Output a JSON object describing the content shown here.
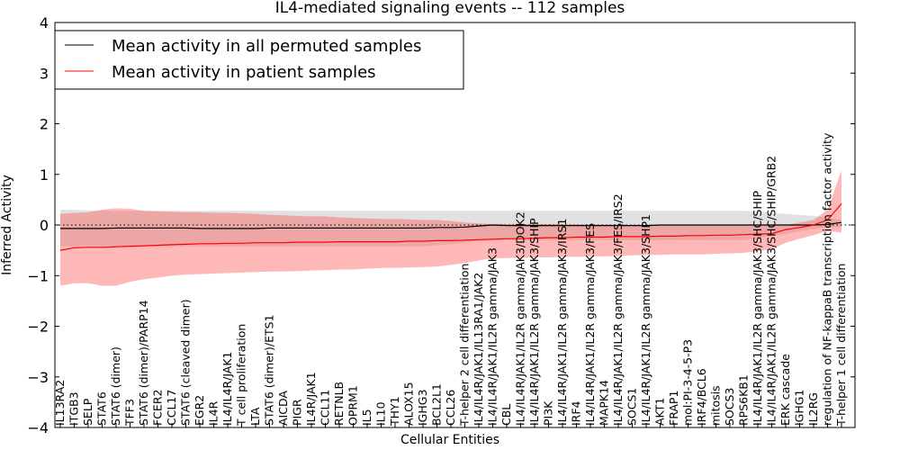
{
  "chart_data": {
    "type": "line",
    "title": "IL4-mediated signaling events -- 112 samples",
    "xlabel": "Cellular Entities",
    "ylabel": "Inferred Activity",
    "ylim": [
      -4,
      4
    ],
    "yticks": [
      -4,
      -3,
      -2,
      -1,
      0,
      1,
      2,
      3,
      4
    ],
    "reference_line": 0,
    "legend_position": "top-left",
    "categories": [
      "IL13RA2",
      "ITGB3",
      "SELP",
      "STAT6",
      "STAT6 (dimer)",
      "TFF3",
      "STAT6 (dimer)/PARP14",
      "FCER2",
      "CCL17",
      "STAT6 (cleaved dimer)",
      "EGR2",
      "IL4R",
      "IL4/IL4R/JAK1",
      "T cell proliferation",
      "LTA",
      "STAT6 (dimer)/ETS1",
      "AICDA",
      "PIGR",
      "IL4R/JAK1",
      "CCL11",
      "RETNLB",
      "OPRM1",
      "IL5",
      "IL10",
      "THY1",
      "ALOX15",
      "IGHG3",
      "BCL2L1",
      "CCL26",
      "T-helper 2 cell differentiation",
      "IL4/IL4R/JAK1/IL13RA1/JAK2",
      "IL4/IL4R/JAK1/IL2R gamma/JAK3",
      "CBL",
      "IL4/IL4R/JAK1/IL2R gamma/JAK3/DOK2",
      "IL4/IL4R/JAK1/IL2R gamma/JAK3/SHIP",
      "PI3K",
      "IL4/IL4R/JAK1/IL2R gamma/JAK3/IRS1",
      "IRF4",
      "IL4/IL4R/JAK1/IL2R gamma/JAK3/FES",
      "MAPK14",
      "IL4/IL4R/JAK1/IL2R gamma/JAK3/FES/IRS2",
      "SOCS1",
      "IL4/IL4R/JAK1/IL2R gamma/JAK3/SHP1",
      "AKT1",
      "FRAP1",
      "mol:PI-3-4-5-P3",
      "IRF4/BCL6",
      "mitosis",
      "SOCS3",
      "RPS6KB1",
      "IL4/IL4R/JAK1/IL2R gamma/JAK3/SHC/SHIP",
      "IL4/IL4R/JAK1/IL2R gamma/JAK3/SHC/SHIP/GRB2",
      "ERK cascade",
      "IGHG1",
      "IL2RG",
      "regulation of NF-kappaB transcription factor activity",
      "T-helper 1 cell differentiation"
    ],
    "series": [
      {
        "name": "Mean activity in all permuted samples",
        "color": "#000000",
        "values": [
          -0.07,
          -0.07,
          -0.07,
          -0.07,
          -0.06,
          -0.06,
          -0.06,
          -0.06,
          -0.06,
          -0.06,
          -0.07,
          -0.07,
          -0.07,
          -0.07,
          -0.07,
          -0.06,
          -0.06,
          -0.06,
          -0.06,
          -0.06,
          -0.06,
          -0.06,
          -0.06,
          -0.06,
          -0.06,
          -0.06,
          -0.06,
          -0.05,
          -0.05,
          -0.04,
          -0.02,
          0.0,
          -0.01,
          -0.01,
          -0.01,
          -0.01,
          -0.01,
          -0.01,
          -0.01,
          -0.01,
          -0.01,
          -0.01,
          -0.01,
          0.0,
          0.0,
          0.0,
          0.0,
          0.0,
          0.0,
          0.0,
          0.0,
          0.0,
          0.0,
          0.0,
          0.0,
          0.01,
          0.05
        ],
        "band_upper": [
          0.3,
          0.3,
          0.29,
          0.29,
          0.28,
          0.28,
          0.28,
          0.28,
          0.28,
          0.28,
          0.28,
          0.28,
          0.28,
          0.28,
          0.28,
          0.28,
          0.28,
          0.28,
          0.28,
          0.28,
          0.28,
          0.28,
          0.28,
          0.28,
          0.28,
          0.28,
          0.28,
          0.28,
          0.28,
          0.28,
          0.28,
          0.28,
          0.28,
          0.28,
          0.28,
          0.28,
          0.28,
          0.28,
          0.28,
          0.28,
          0.28,
          0.28,
          0.28,
          0.28,
          0.28,
          0.28,
          0.28,
          0.28,
          0.28,
          0.28,
          0.26,
          0.24,
          0.22,
          0.2,
          0.18,
          0.15,
          0.1
        ],
        "band_lower": [
          -0.42,
          -0.42,
          -0.42,
          -0.42,
          -0.42,
          -0.42,
          -0.42,
          -0.42,
          -0.42,
          -0.42,
          -0.42,
          -0.42,
          -0.42,
          -0.42,
          -0.42,
          -0.42,
          -0.42,
          -0.42,
          -0.42,
          -0.42,
          -0.42,
          -0.42,
          -0.42,
          -0.42,
          -0.42,
          -0.42,
          -0.42,
          -0.4,
          -0.38,
          -0.35,
          -0.32,
          -0.3,
          -0.3,
          -0.3,
          -0.3,
          -0.3,
          -0.3,
          -0.3,
          -0.3,
          -0.3,
          -0.3,
          -0.3,
          -0.3,
          -0.3,
          -0.3,
          -0.3,
          -0.3,
          -0.3,
          -0.3,
          -0.3,
          -0.26,
          -0.22,
          -0.18,
          -0.12,
          -0.08,
          -0.05,
          -0.05
        ]
      },
      {
        "name": "Mean activity in patient samples",
        "color": "#ff0000",
        "values": [
          -0.5,
          -0.45,
          -0.44,
          -0.44,
          -0.43,
          -0.42,
          -0.41,
          -0.4,
          -0.39,
          -0.38,
          -0.37,
          -0.37,
          -0.36,
          -0.36,
          -0.35,
          -0.35,
          -0.35,
          -0.34,
          -0.34,
          -0.34,
          -0.33,
          -0.33,
          -0.33,
          -0.33,
          -0.33,
          -0.32,
          -0.32,
          -0.31,
          -0.31,
          -0.3,
          -0.29,
          -0.28,
          -0.27,
          -0.27,
          -0.26,
          -0.25,
          -0.25,
          -0.24,
          -0.24,
          -0.24,
          -0.23,
          -0.23,
          -0.23,
          -0.22,
          -0.22,
          -0.21,
          -0.21,
          -0.2,
          -0.2,
          -0.19,
          -0.18,
          -0.17,
          -0.09,
          -0.05,
          0.0,
          0.1,
          0.42
        ],
        "band_upper": [
          0.22,
          0.24,
          0.25,
          0.3,
          0.33,
          0.32,
          0.28,
          0.27,
          0.26,
          0.25,
          0.25,
          0.24,
          0.24,
          0.23,
          0.22,
          0.2,
          0.19,
          0.18,
          0.17,
          0.17,
          0.15,
          0.14,
          0.13,
          0.12,
          0.12,
          0.11,
          0.1,
          0.1,
          0.08,
          0.05,
          0.03,
          0.02,
          0.02,
          0.02,
          0.02,
          0.02,
          0.02,
          0.01,
          0.01,
          0.01,
          0.01,
          0.0,
          0.0,
          0.0,
          0.0,
          0.0,
          0.0,
          0.0,
          0.0,
          0.0,
          0.0,
          0.0,
          0.0,
          0.05,
          0.1,
          0.3,
          1.08
        ],
        "band_lower": [
          -1.2,
          -1.15,
          -1.15,
          -1.2,
          -1.2,
          -1.12,
          -1.07,
          -1.04,
          -1.0,
          -0.98,
          -0.97,
          -0.96,
          -0.95,
          -0.94,
          -0.93,
          -0.92,
          -0.92,
          -0.91,
          -0.9,
          -0.89,
          -0.88,
          -0.88,
          -0.86,
          -0.85,
          -0.85,
          -0.84,
          -0.83,
          -0.82,
          -0.79,
          -0.75,
          -0.7,
          -0.66,
          -0.65,
          -0.65,
          -0.64,
          -0.64,
          -0.63,
          -0.63,
          -0.62,
          -0.62,
          -0.61,
          -0.6,
          -0.59,
          -0.59,
          -0.58,
          -0.58,
          -0.58,
          -0.57,
          -0.56,
          -0.55,
          -0.52,
          -0.48,
          -0.35,
          -0.27,
          -0.2,
          -0.12,
          -0.15
        ]
      }
    ]
  }
}
